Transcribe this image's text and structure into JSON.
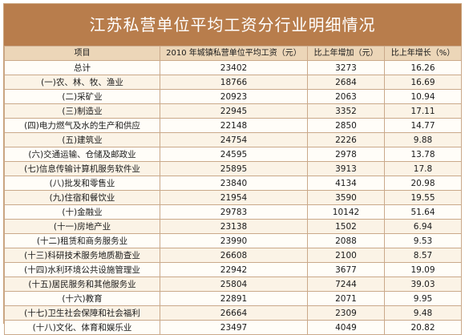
{
  "title": "江苏私营单位平均工资分行业明细情况",
  "headers": [
    "项目",
    "2010 年城镇私营单位平均工资（元）",
    "比上年增加（元）",
    "比上年增长（%）"
  ],
  "rows": [
    {
      "item": "总计",
      "avg_wage": "23402",
      "increase": "3273",
      "growth": "16.26"
    },
    {
      "item": "(一)农、林、牧、渔业",
      "avg_wage": "18766",
      "increase": "2684",
      "growth": "16.69"
    },
    {
      "item": "(二)采矿业",
      "avg_wage": "20923",
      "increase": "2063",
      "growth": "10.94"
    },
    {
      "item": "(三)制造业",
      "avg_wage": "22945",
      "increase": "3352",
      "growth": "17.11"
    },
    {
      "item": "(四)电力燃气及水的生产和供应",
      "avg_wage": "22148",
      "increase": "2850",
      "growth": "14.77"
    },
    {
      "item": "(五)建筑业",
      "avg_wage": "24754",
      "increase": "2226",
      "growth": "9.88"
    },
    {
      "item": "(六)交通运输、仓储及邮政业",
      "avg_wage": "24595",
      "increase": "2978",
      "growth": "13.78"
    },
    {
      "item": "(七)信息传输计算机服务软件业",
      "avg_wage": "25895",
      "increase": "3913",
      "growth": "17.8"
    },
    {
      "item": "(八)批发和零售业",
      "avg_wage": "23840",
      "increase": "4134",
      "growth": "20.98"
    },
    {
      "item": "(九)住宿和餐饮业",
      "avg_wage": "21954",
      "increase": "3590",
      "growth": "19.55"
    },
    {
      "item": "(十)金融业",
      "avg_wage": "29783",
      "increase": "10142",
      "growth": "51.64"
    },
    {
      "item": "(十一)房地产业",
      "avg_wage": "23138",
      "increase": "1502",
      "growth": "6.94"
    },
    {
      "item": "(十二)租赁和商务服务业",
      "avg_wage": "23990",
      "increase": "2088",
      "growth": "9.53"
    },
    {
      "item": "(十三)科研技术服务地质勘查业",
      "avg_wage": "26608",
      "increase": "2100",
      "growth": "8.57"
    },
    {
      "item": "(十四)水利环境公共设施管理业",
      "avg_wage": "22942",
      "increase": "3677",
      "growth": "19.09"
    },
    {
      "item": "(十五)居民服务和其他服务业",
      "avg_wage": "25804",
      "increase": "7244",
      "growth": "39.03"
    },
    {
      "item": "(十六)教育",
      "avg_wage": "22891",
      "increase": "2071",
      "growth": "9.95"
    },
    {
      "item": "(十七)卫生社会保障和社会福利",
      "avg_wage": "26664",
      "increase": "2309",
      "growth": "9.48"
    },
    {
      "item": "(十八)文化、体育和娱乐业",
      "avg_wage": "23497",
      "increase": "4049",
      "growth": "20.82"
    }
  ]
}
